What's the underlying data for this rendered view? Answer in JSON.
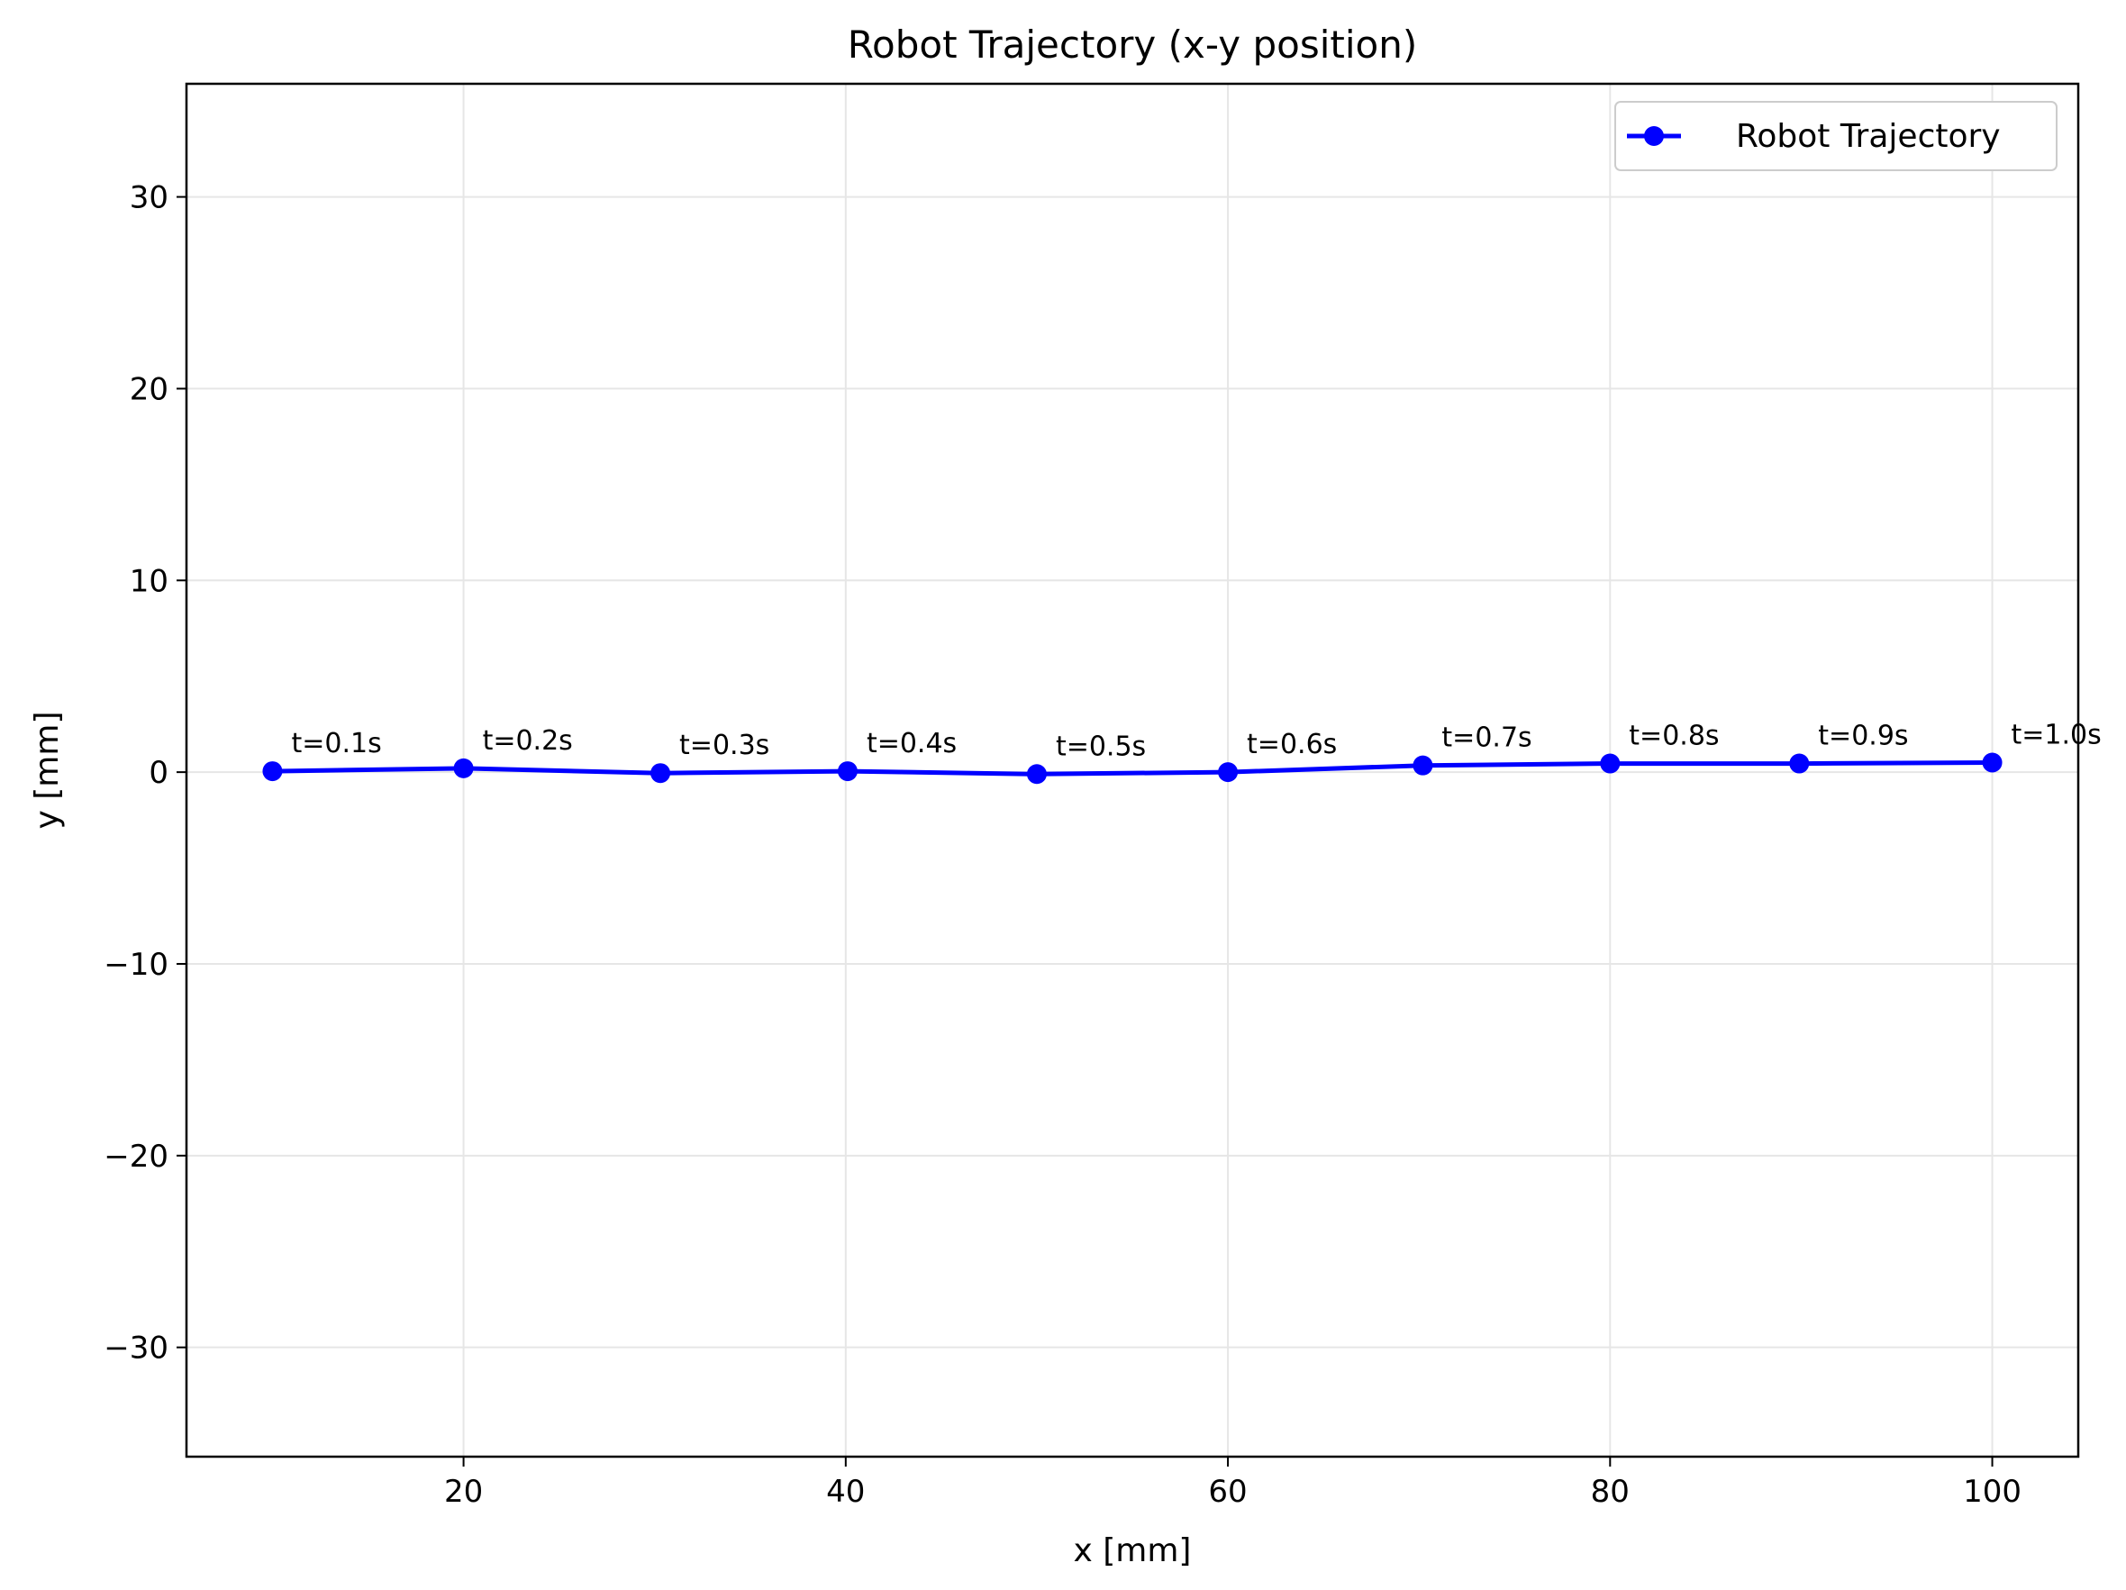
{
  "chart_data": {
    "type": "line",
    "title": "Robot Trajectory (x-y position)",
    "xlabel": "x [mm]",
    "ylabel": "y [mm]",
    "xlim": [
      5.5,
      104.5
    ],
    "ylim": [
      -35.7,
      35.9
    ],
    "xticks": [
      20,
      40,
      60,
      80,
      100
    ],
    "yticks": [
      -30,
      -20,
      -10,
      0,
      10,
      20,
      30
    ],
    "xtick_labels": [
      "20",
      "40",
      "60",
      "80",
      "100"
    ],
    "ytick_labels": [
      "−30",
      "−20",
      "−10",
      "0",
      "10",
      "20",
      "30"
    ],
    "grid": true,
    "legend_placement": "top-right",
    "series": [
      {
        "name": "Robot Trajectory",
        "color": "#0000ff",
        "marker": "circle",
        "x": [
          10,
          20,
          30.3,
          40.1,
          50,
          60,
          70.2,
          80,
          89.9,
          100
        ],
        "y": [
          0.05,
          0.2,
          -0.05,
          0.05,
          -0.1,
          0.0,
          0.35,
          0.45,
          0.45,
          0.5
        ],
        "labels": [
          "t=0.1s",
          "t=0.2s",
          "t=0.3s",
          "t=0.4s",
          "t=0.5s",
          "t=0.6s",
          "t=0.7s",
          "t=0.8s",
          "t=0.9s",
          "t=1.0s"
        ]
      }
    ]
  }
}
